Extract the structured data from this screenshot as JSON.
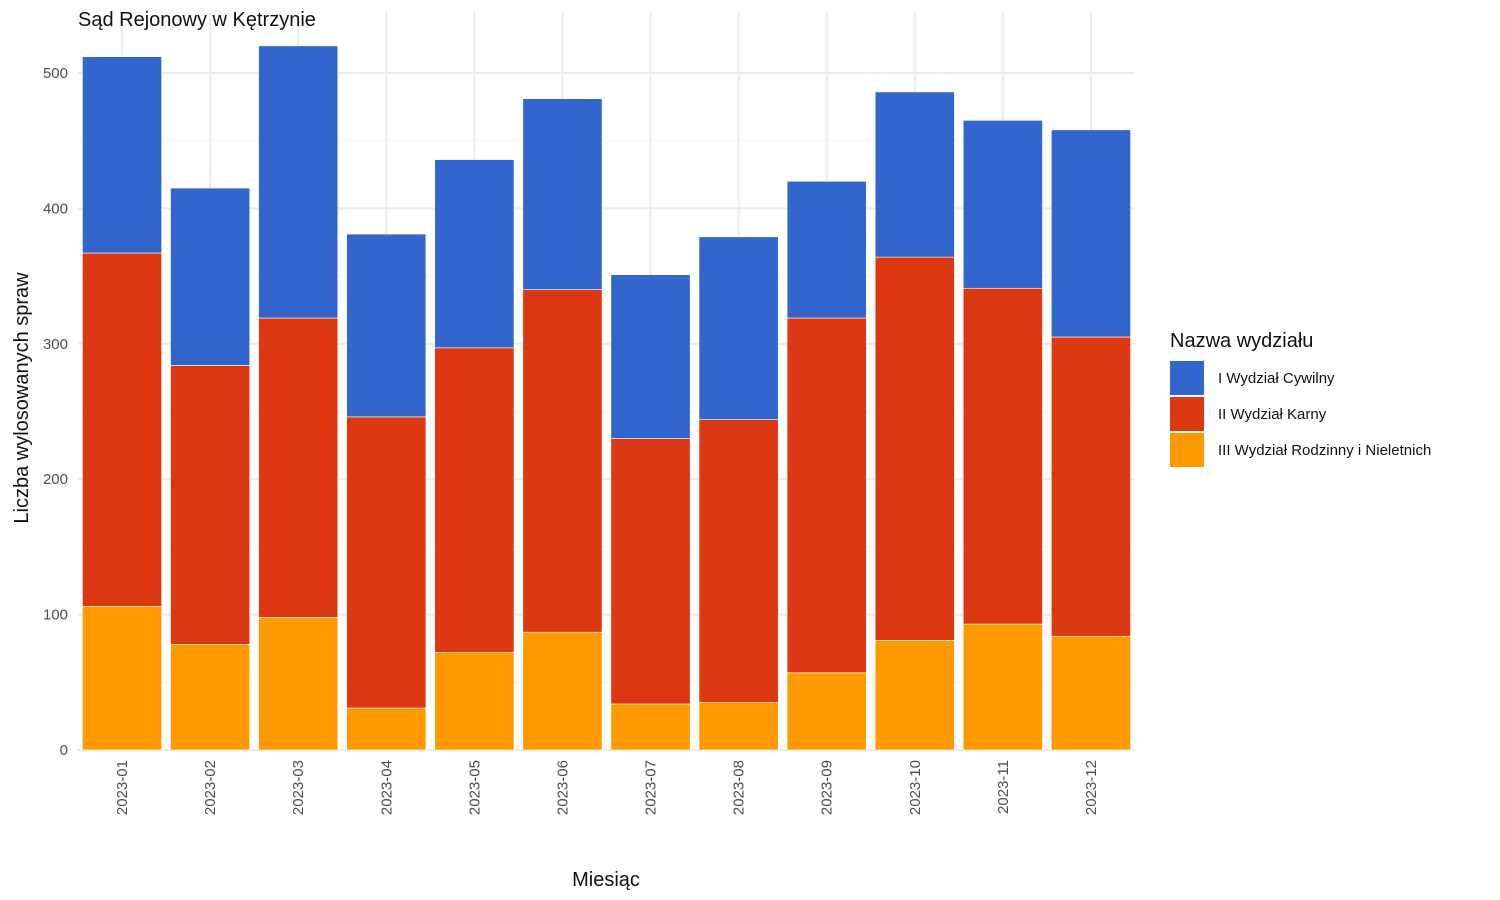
{
  "chart_data": {
    "type": "bar",
    "stacked": true,
    "title": "Sąd Rejonowy w Kętrzynie",
    "xlabel": "Miesiąc",
    "ylabel": "Liczba wylosowanych spraw",
    "ylim": [
      0,
      520
    ],
    "yticks": [
      0,
      100,
      200,
      300,
      400,
      500
    ],
    "grid": true,
    "legend": {
      "title": "Nazwa wydziału",
      "placement": "right"
    },
    "categories": [
      "2023-01",
      "2023-02",
      "2023-03",
      "2023-04",
      "2023-05",
      "2023-06",
      "2023-07",
      "2023-08",
      "2023-09",
      "2023-10",
      "2023-11",
      "2023-12"
    ],
    "series": [
      {
        "name": "III Wydział Rodzinny i Nieletnich",
        "color": "#ff9900",
        "values": [
          106,
          78,
          98,
          31,
          72,
          87,
          34,
          35,
          57,
          81,
          93,
          84
        ]
      },
      {
        "name": "II Wydział Karny",
        "color": "#dc3912",
        "values": [
          261,
          206,
          221,
          215,
          225,
          253,
          196,
          209,
          262,
          283,
          248,
          221
        ]
      },
      {
        "name": "I Wydział Cywilny",
        "color": "#3366cc",
        "values": [
          145,
          131,
          201,
          135,
          139,
          141,
          121,
          135,
          101,
          122,
          124,
          153
        ]
      }
    ],
    "legend_order": [
      "I Wydział Cywilny",
      "II Wydział Karny",
      "III Wydział Rodzinny i Nieletnich"
    ]
  }
}
